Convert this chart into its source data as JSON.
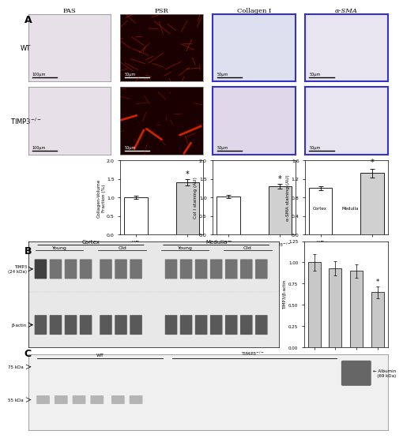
{
  "panel_A_label": "A",
  "panel_B_label": "B",
  "panel_C_label": "C",
  "bar_chart1": {
    "title": "Collagen-Volume\nFraction (%)",
    "categories": [
      "WT",
      "TIMP3⁻⁻"
    ],
    "values": [
      1.0,
      1.4
    ],
    "errors": [
      0.05,
      0.08
    ],
    "ylim": [
      0.0,
      2.0
    ],
    "yticks": [
      0.0,
      0.5,
      1.0,
      1.5,
      2.0
    ],
    "star_bar": 1,
    "bar_colors": [
      "white",
      "#d0d0d0"
    ]
  },
  "bar_chart2": {
    "title": "Col I staining (AU)",
    "categories": [
      "WT",
      "TIMP3⁻⁻"
    ],
    "values": [
      1.02,
      1.3
    ],
    "errors": [
      0.05,
      0.06
    ],
    "ylim": [
      0.0,
      2.0
    ],
    "yticks": [
      0.0,
      0.5,
      1.0,
      1.5,
      2.0
    ],
    "star_bar": 1,
    "bar_colors": [
      "white",
      "#d0d0d0"
    ]
  },
  "bar_chart3": {
    "title": "α-SMA staining (AU)",
    "categories": [
      "WT",
      "TIMP3⁻⁻"
    ],
    "values": [
      1.0,
      1.32
    ],
    "errors": [
      0.04,
      0.1
    ],
    "ylim": [
      0.0,
      1.6
    ],
    "yticks": [
      0.0,
      0.4,
      0.8,
      1.2,
      1.6
    ],
    "star_bar": 1,
    "bar_colors": [
      "white",
      "#d0d0d0"
    ]
  },
  "bar_chart_B": {
    "title": "TIMP3/β-actin",
    "groups": [
      "Cortex",
      "Medulla"
    ],
    "categories": [
      "Young",
      "Old",
      "Young",
      "Old"
    ],
    "values": [
      1.0,
      0.93,
      0.9,
      0.65
    ],
    "errors": [
      0.1,
      0.08,
      0.08,
      0.07
    ],
    "ylim": [
      0.0,
      1.2
    ],
    "yticks": [
      0.0,
      0.25,
      0.5,
      0.75,
      1.0,
      1.25
    ],
    "star_bar": 3,
    "bar_colors": [
      "#c0c0c0",
      "#c0c0c0",
      "#c0c0c0",
      "#c0c0c0"
    ]
  },
  "image_titles": [
    "PAS",
    "PSR",
    "Collagen I",
    "α-SMA"
  ],
  "row_labels": [
    "WT",
    "TIMP3⁻/⁻"
  ],
  "bg_color": "#f5f5f5",
  "wt_bg": "#f0eeee",
  "psr_bg": "#1a0000",
  "collagen_border": "#3333cc",
  "alpha_sma_border": "#3333cc"
}
